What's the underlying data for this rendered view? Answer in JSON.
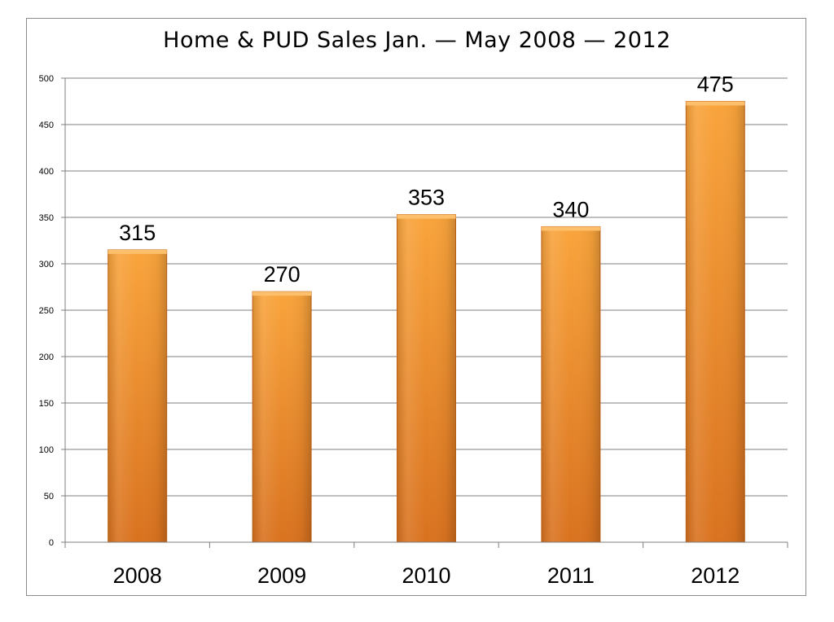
{
  "chart_data": {
    "type": "bar",
    "title": "Home & PUD Sales Jan. — May 2008 — 2012",
    "xlabel": "",
    "ylabel": "",
    "categories": [
      "2008",
      "2009",
      "2010",
      "2011",
      "2012"
    ],
    "values": [
      315,
      270,
      353,
      340,
      475
    ],
    "data_labels": [
      "315",
      "270",
      "353",
      "340",
      "475"
    ],
    "ylim": [
      0,
      500
    ],
    "yticks": [
      0,
      50,
      100,
      150,
      200,
      250,
      300,
      350,
      400,
      450,
      500
    ],
    "grid": true,
    "legend": "none",
    "colors": {
      "bar_top": "#f9a43c",
      "bar_bottom": "#d9721f",
      "bar_edge": "#c86718",
      "grid": "#7f7f7f",
      "axis": "#7f7f7f",
      "frame": "#8c8c8c"
    }
  }
}
